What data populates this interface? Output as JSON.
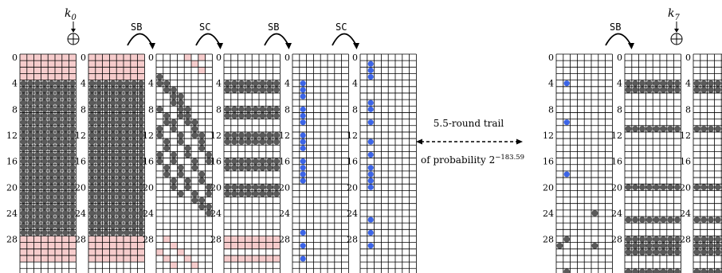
{
  "keys": [
    {
      "base": "k",
      "sub": "0"
    },
    {
      "base": "k",
      "sub": "7"
    }
  ],
  "ops": [
    "SB",
    "SC",
    "SB",
    "SC",
    "SB"
  ],
  "row_labels": [
    "0",
    "4",
    "8",
    "12",
    "16",
    "20",
    "24",
    "28"
  ],
  "trail": {
    "line1": "5.5-round trail",
    "line2_prefix": "of probability 2",
    "line2_exp": "−183.59"
  },
  "colors": {
    "grid": "#000000",
    "active": "#5a5a5a",
    "key": "#f6cccc",
    "diff": "#3b64e8"
  },
  "states": [
    {
      "id": "s0",
      "key_rows": [
        0,
        1,
        2,
        3,
        28,
        29,
        30,
        31
      ],
      "active_rows": "4-27"
    },
    {
      "id": "s1",
      "key_rows": [
        0,
        1,
        2,
        3,
        28,
        29,
        30,
        31
      ],
      "active_rows": "4-27"
    },
    {
      "id": "s2",
      "pattern": "after-SB sparse"
    },
    {
      "id": "s3",
      "pattern": "after-SC rows"
    },
    {
      "id": "s4",
      "pattern": "single column diffs"
    },
    {
      "id": "s5",
      "pattern": "single column diffs"
    },
    {
      "id": "s6",
      "pattern": "sparse diffs"
    },
    {
      "id": "s7",
      "pattern": "full rows"
    },
    {
      "id": "s8",
      "pattern": "full rows (clipped)"
    }
  ]
}
